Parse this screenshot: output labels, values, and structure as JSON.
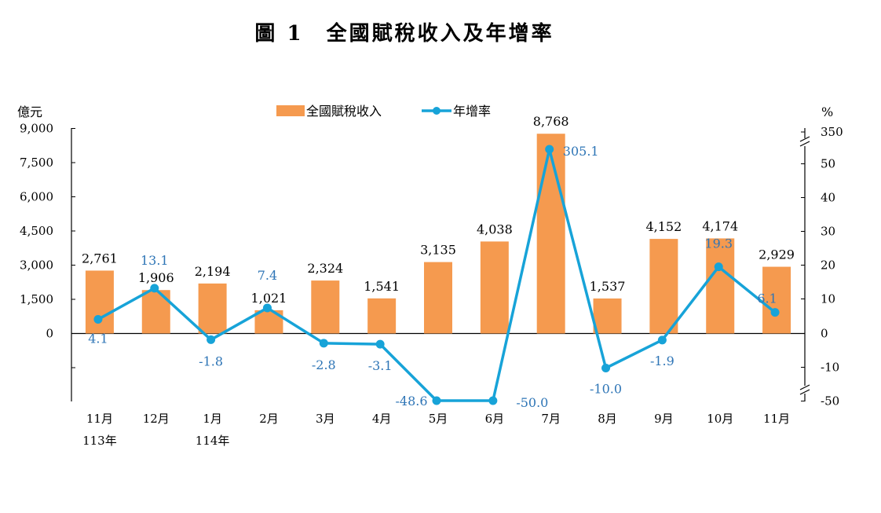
{
  "title": "圖 1　全國賦稅收入及年增率",
  "colors": {
    "bar": "#f59a4f",
    "line": "#17a3d8",
    "rate_label": "#2e75b6"
  },
  "chart_data": {
    "type": "bar",
    "categories": [
      "11月",
      "12月",
      "1月",
      "2月",
      "3月",
      "4月",
      "5月",
      "6月",
      "7月",
      "8月",
      "9月",
      "10月",
      "11月"
    ],
    "category_sublabels": [
      "113年",
      "",
      "114年",
      "",
      "",
      "",
      "",
      "",
      "",
      "",
      "",
      "",
      ""
    ],
    "series": [
      {
        "name": "全國賦稅收入",
        "type": "bar",
        "axis": "left",
        "values": [
          2761,
          1906,
          2194,
          1021,
          2324,
          1541,
          3135,
          4038,
          8768,
          1537,
          4152,
          4174,
          2929
        ],
        "labels": [
          "2,761",
          "1,906",
          "2,194",
          "1,021",
          "2,324",
          "1,541",
          "3,135",
          "4,038",
          "8,768",
          "1,537",
          "4,152",
          "4,174",
          "2,929"
        ]
      },
      {
        "name": "年增率",
        "type": "line",
        "axis": "right",
        "values": [
          4.1,
          13.1,
          -1.8,
          7.4,
          -2.8,
          -3.1,
          -48.6,
          -50.0,
          305.1,
          -10.0,
          -1.9,
          19.3,
          6.1
        ],
        "labels": [
          "4.1",
          "13.1",
          "-1.8",
          "7.4",
          "-2.8",
          "-3.1",
          "-48.6",
          "-50.0",
          "305.1",
          "-10.0",
          "-1.9",
          "19.3",
          "6.1"
        ]
      }
    ],
    "y_left": {
      "unit": "億元",
      "ticks": [
        "9,000",
        "7,500",
        "6,000",
        "4,500",
        "3,000",
        "1,500",
        "0"
      ],
      "ylim": [
        -3000,
        9000
      ]
    },
    "y_right": {
      "unit": "%",
      "ticks": [
        "350",
        "50",
        "40",
        "30",
        "20",
        "10",
        "0",
        "-10",
        "-50"
      ],
      "scale_break": "axis broken above 60 and below -10"
    },
    "legend": {
      "position": "top",
      "items": [
        "全國賦稅收入",
        "年增率"
      ]
    }
  }
}
